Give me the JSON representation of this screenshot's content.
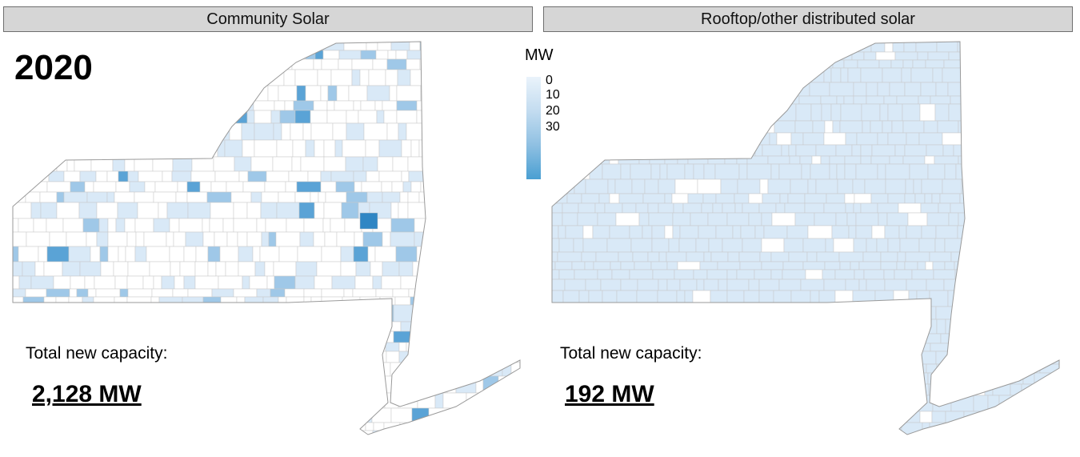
{
  "left_panel": {
    "title": "Community Solar",
    "year": "2020",
    "total_label": "Total new capacity:",
    "total_value": "2,128 MW"
  },
  "right_panel": {
    "title": "Rooftop/other distributed solar",
    "total_label": "Total new capacity:",
    "total_value": "192 MW"
  },
  "legend": {
    "title": "MW",
    "ticks": [
      "0",
      "10",
      "20",
      "30"
    ],
    "color_low": "#eaf3fb",
    "color_high": "#4a9fd2"
  },
  "colors": {
    "boundary": "#c8c8c8",
    "outline": "#9a9a9a",
    "empty": "#ffffff",
    "light": "#d9e9f7",
    "medium": "#9fc8e8",
    "strong": "#5aa3d6",
    "darkest": "#2f86c4"
  }
}
